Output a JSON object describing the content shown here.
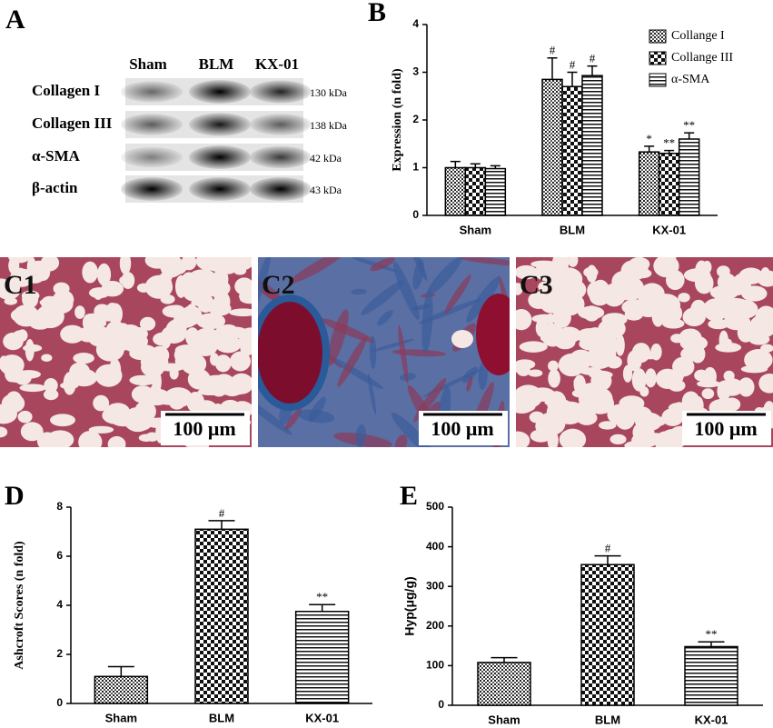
{
  "blot": {
    "panel_label": "A",
    "column_labels": [
      "Sham",
      "BLM",
      "KX-01"
    ],
    "rows": [
      {
        "label": "Collagen I",
        "size": "130 kDa"
      },
      {
        "label": "Collagen III",
        "size": "138 kDa"
      },
      {
        "label": "α-SMA",
        "size": "42 kDa"
      },
      {
        "label": "β-actin",
        "size": "43 kDa"
      }
    ]
  },
  "histology": {
    "panels": [
      {
        "label": "C1",
        "scale": "100 μm"
      },
      {
        "label": "C2",
        "scale": "100 μm"
      },
      {
        "label": "C3",
        "scale": "100 μm"
      }
    ]
  },
  "chart_data": [
    {
      "type": "bar",
      "panel_label": "B",
      "y_label": "Expression (n fold)",
      "categories": [
        "Sham",
        "BLM",
        "KX-01"
      ],
      "series": [
        {
          "name": "Collange I",
          "color": "#000000",
          "hatch": "grid",
          "values": [
            1.0,
            2.85,
            1.33
          ],
          "errors": [
            0.13,
            0.45,
            0.12
          ],
          "annotations": [
            null,
            "#",
            "*"
          ]
        },
        {
          "name": "Collange III",
          "color": "#000000",
          "hatch": "checker",
          "values": [
            1.0,
            2.7,
            1.3
          ],
          "errors": [
            0.08,
            0.3,
            0.06
          ],
          "annotations": [
            null,
            "#",
            "**"
          ]
        },
        {
          "name": "α-SMA",
          "color": "#000000",
          "hatch": "hlines",
          "values": [
            0.98,
            2.93,
            1.6
          ],
          "errors": [
            0.06,
            0.2,
            0.13
          ],
          "annotations": [
            null,
            "#",
            "**"
          ]
        }
      ],
      "ylim": [
        0,
        4
      ],
      "yticks": [
        0,
        1,
        2,
        3,
        4
      ],
      "legend": "upper-right"
    },
    {
      "type": "bar",
      "panel_label": "D",
      "y_label": "Ashcroft Scores (n fold)",
      "categories": [
        "Sham",
        "BLM",
        "KX-01"
      ],
      "values": [
        1.1,
        7.1,
        3.75
      ],
      "errors": [
        0.4,
        0.35,
        0.28
      ],
      "annotations": [
        null,
        "#",
        "**"
      ],
      "color": "#000000",
      "hatches": [
        "grid",
        "checker",
        "hlines"
      ],
      "ylim": [
        0,
        8
      ],
      "yticks": [
        0,
        2,
        4,
        6,
        8
      ]
    },
    {
      "type": "bar",
      "panel_label": "E",
      "y_label": "Hyp(μg/g)",
      "categories": [
        "Sham",
        "BLM",
        "KX-01"
      ],
      "values": [
        108,
        355,
        148
      ],
      "errors": [
        12,
        22,
        12
      ],
      "annotations": [
        null,
        "#",
        "**"
      ],
      "color": "#000000",
      "hatches": [
        "grid",
        "checker",
        "hlines"
      ],
      "ylim": [
        0,
        500
      ],
      "yticks": [
        0,
        100,
        200,
        300,
        400,
        500
      ]
    }
  ]
}
